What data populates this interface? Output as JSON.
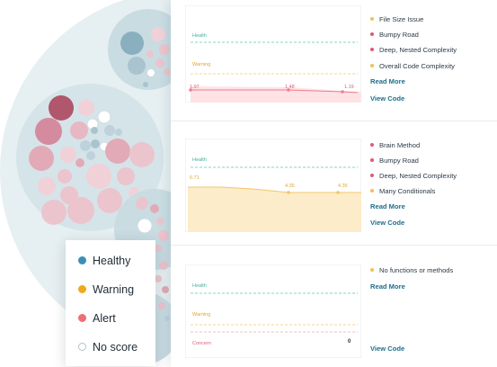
{
  "legend": {
    "items": [
      {
        "label": "Healthy",
        "color": "#3a8fb7"
      },
      {
        "label": "Warning",
        "color": "#f0a81e"
      },
      {
        "label": "Alert",
        "color": "#ee6f73"
      },
      {
        "label": "No score",
        "color": "#ffffff"
      }
    ]
  },
  "cards": [
    {
      "trend": {
        "health_label": "Health",
        "warning_label": "Warning",
        "points": [
          {
            "label": "1.97"
          },
          {
            "label": "1.48"
          },
          {
            "label": "1.19"
          }
        ]
      },
      "issues": [
        {
          "label": "File Size Issue",
          "color": "#f0c05a"
        },
        {
          "label": "Bumpy Road",
          "color": "#e0597a"
        },
        {
          "label": "Deep, Nested Complexity",
          "color": "#e0597a"
        },
        {
          "label": "Overall Code Complexity",
          "color": "#f0c05a"
        }
      ],
      "read_more": "Read More",
      "view_code": "View Code"
    },
    {
      "trend": {
        "health_label": "Health",
        "points": [
          {
            "label": "6.71"
          },
          {
            "label": "4.35"
          },
          {
            "label": "4.35"
          }
        ]
      },
      "issues": [
        {
          "label": "Brain Method",
          "color": "#e0597a"
        },
        {
          "label": "Bumpy Road",
          "color": "#e0597a"
        },
        {
          "label": "Deep, Nested Complexity",
          "color": "#e0597a"
        },
        {
          "label": "Many Conditionals",
          "color": "#f0c05a"
        }
      ],
      "read_more": "Read More",
      "view_code": "View Code"
    },
    {
      "trend": {
        "health_label": "Health",
        "warning_label": "Warning",
        "concern_label": "Concern",
        "value": "0"
      },
      "issues": [
        {
          "label": "No functions or methods",
          "color": "#f0c05a"
        }
      ],
      "read_more": "Read More",
      "view_code": "View Code"
    }
  ]
}
